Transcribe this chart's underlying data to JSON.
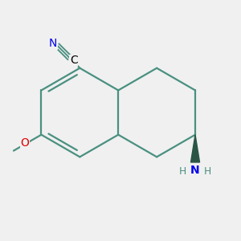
{
  "bg_color": "#f0f0f0",
  "bond_color": "#4a9080",
  "bond_width": 1.6,
  "font_size": 10,
  "font_size_sub": 7.5,
  "N_color": "#0000ee",
  "O_color": "#dd0000",
  "bond_color_dark": "#3a7060",
  "wedge_color": "#2a5545",
  "fig_width": 3.0,
  "fig_height": 3.0,
  "dpi": 100,
  "xlim": [
    -2.8,
    2.6
  ],
  "ylim": [
    -2.2,
    2.0
  ]
}
